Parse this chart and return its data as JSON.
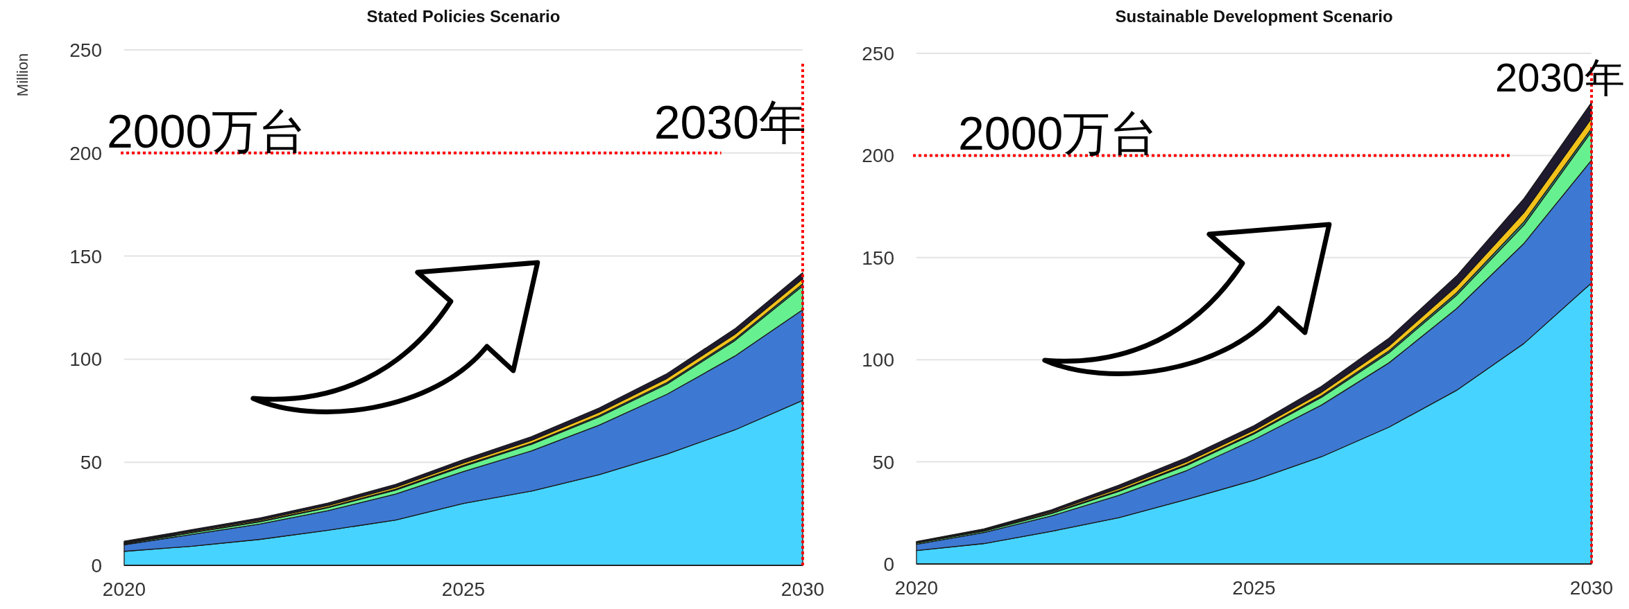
{
  "chart_data": [
    {
      "type": "area",
      "stacked": true,
      "title": "Stated Policies Scenario",
      "ylabel": "Million",
      "x": [
        2020,
        2021,
        2022,
        2023,
        2024,
        2025,
        2026,
        2027,
        2028,
        2029,
        2030
      ],
      "xlim": [
        2020,
        2030
      ],
      "xticks": [
        2020,
        2025,
        2030
      ],
      "ylim": [
        0,
        250
      ],
      "yticks": [
        0,
        50,
        100,
        150,
        200,
        250
      ],
      "grid": "y",
      "series": [
        {
          "color": "#47d3ff",
          "values": [
            6.8,
            9.3,
            12.6,
            17,
            22,
            30,
            36,
            44,
            54,
            65.7,
            80
          ]
        },
        {
          "color": "#3d79d2",
          "values": [
            3.2,
            5.7,
            7.4,
            9.5,
            12.6,
            15.5,
            19.5,
            24,
            29,
            35.8,
            44
          ]
        },
        {
          "color": "#66f08f",
          "values": [
            0.5,
            0.8,
            1.1,
            1.4,
            1.9,
            2.5,
            3.2,
            4,
            5,
            7.5,
            11.5
          ]
        },
        {
          "color": "#2e8b7a",
          "values": [
            0.2,
            0.2,
            0.3,
            0.3,
            0.4,
            0.5,
            0.5,
            0.6,
            0.7,
            0.8,
            1
          ]
        },
        {
          "color": "#f2c21b",
          "values": [
            0.4,
            0.5,
            0.6,
            0.8,
            1,
            1.2,
            1.4,
            1.7,
            2,
            2.3,
            2.5
          ]
        },
        {
          "color": "#1f1a2e",
          "values": [
            0.6,
            0.8,
            1,
            1.2,
            1.4,
            1.6,
            1.8,
            2,
            2.3,
            2.6,
            3
          ]
        }
      ],
      "ref_lines": [
        {
          "axis": "y",
          "value": 200,
          "label": "2000万台",
          "color": "#ff0000",
          "line_style": "dotted"
        },
        {
          "axis": "x",
          "value": 2030,
          "label": "2030年",
          "color": "#ff0000",
          "line_style": "dotted"
        }
      ]
    },
    {
      "type": "area",
      "stacked": true,
      "title": "Sustainable Development Scenario",
      "x": [
        2020,
        2021,
        2022,
        2023,
        2024,
        2025,
        2026,
        2027,
        2028,
        2029,
        2030
      ],
      "xlim": [
        2020,
        2030
      ],
      "xticks": [
        2020,
        2025,
        2030
      ],
      "ylim": [
        0,
        250
      ],
      "yticks": [
        0,
        50,
        100,
        150,
        200,
        250
      ],
      "grid": "y",
      "series": [
        {
          "color": "#47d3ff",
          "values": [
            6.6,
            10,
            16,
            22.7,
            31.6,
            41,
            52.5,
            67,
            85,
            108,
            137.6
          ]
        },
        {
          "color": "#3d79d2",
          "values": [
            3,
            5.4,
            7.5,
            10.9,
            14.1,
            19.9,
            25.3,
            31.5,
            40,
            49,
            60.1
          ]
        },
        {
          "color": "#66f08f",
          "values": [
            0.6,
            0.7,
            1.2,
            2,
            2.5,
            2.8,
            3.8,
            5,
            6.5,
            9,
            14
          ]
        },
        {
          "color": "#2e8b7a",
          "values": [
            0.1,
            0.2,
            0.3,
            0.4,
            0.5,
            0.5,
            0.7,
            0.9,
            1.2,
            1.6,
            1.5
          ]
        },
        {
          "color": "#f2c21b",
          "values": [
            0.3,
            0.4,
            0.6,
            1,
            1.3,
            1.4,
            1.8,
            2.4,
            3.3,
            4.5,
            5
          ]
        },
        {
          "color": "#1f1a2e",
          "values": [
            0.4,
            0.5,
            0.9,
            1.6,
            2,
            2.1,
            2.9,
            3.8,
            5,
            6.9,
            7.8
          ]
        }
      ],
      "ref_lines": [
        {
          "axis": "y",
          "value": 200,
          "label": "2000万台",
          "color": "#ff0000",
          "line_style": "dotted"
        },
        {
          "axis": "x",
          "value": 2030,
          "label": "2030年",
          "color": "#ff0000",
          "line_style": "dotted"
        }
      ]
    }
  ]
}
